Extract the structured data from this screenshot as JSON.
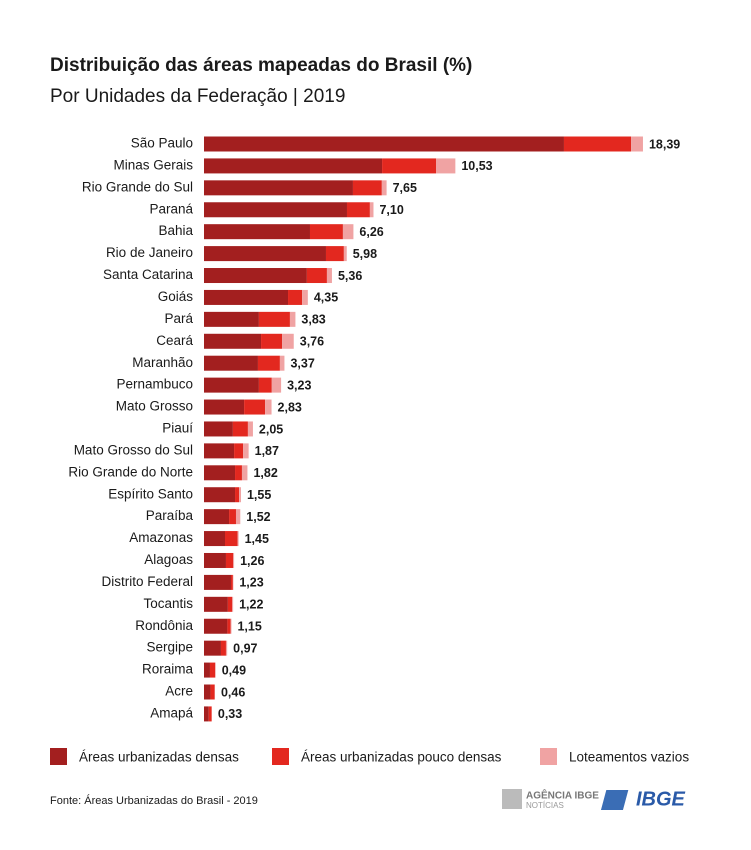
{
  "chart_data": {
    "type": "stacked-bar-horizontal",
    "title": "Distribuição das áreas mapeadas do Brasil (%)",
    "subtitle": "Por Unidades da Federação | 2019",
    "categories": [
      "São Paulo",
      "Minas Gerais",
      "Rio Grande do Sul",
      "Paraná",
      "Bahia",
      "Rio de Janeiro",
      "Santa Catarina",
      "Goiás",
      "Pará",
      "Ceará",
      "Maranhão",
      "Pernambuco",
      "Mato Grosso",
      "Piauí",
      "Mato Grosso do Sul",
      "Rio Grande do Norte",
      "Espírito Santo",
      "Paraíba",
      "Amazonas",
      "Alagoas",
      "Distrito Federal",
      "Tocantis",
      "Rondônia",
      "Sergipe",
      "Roraima",
      "Acre",
      "Amapá"
    ],
    "series": [
      {
        "name": "Áreas urbanizadas densas",
        "color": "#a31f1f",
        "values": [
          15.08,
          7.46,
          6.24,
          5.99,
          4.44,
          5.11,
          4.31,
          3.52,
          2.3,
          2.39,
          2.26,
          2.3,
          1.68,
          1.21,
          1.26,
          1.3,
          1.3,
          1.05,
          0.88,
          0.92,
          1.13,
          1.0,
          0.98,
          0.71,
          0.25,
          0.27,
          0.2
        ]
      },
      {
        "name": "Áreas urbanizadas pouco densas",
        "color": "#e3281f",
        "values": [
          2.81,
          2.26,
          1.21,
          0.96,
          1.38,
          0.75,
          0.84,
          0.59,
          1.3,
          0.88,
          0.92,
          0.54,
          0.88,
          0.63,
          0.38,
          0.29,
          0.17,
          0.29,
          0.53,
          0.3,
          0.08,
          0.18,
          0.13,
          0.21,
          0.22,
          0.17,
          0.12
        ]
      },
      {
        "name": "Loteamentos vazios",
        "color": "#f0a3a3",
        "values": [
          0.5,
          0.81,
          0.2,
          0.15,
          0.44,
          0.12,
          0.21,
          0.24,
          0.23,
          0.49,
          0.19,
          0.39,
          0.27,
          0.21,
          0.23,
          0.23,
          0.08,
          0.18,
          0.04,
          0.04,
          0.02,
          0.04,
          0.04,
          0.05,
          0.02,
          0.02,
          0.01
        ]
      }
    ],
    "values": [
      18.39,
      10.53,
      7.65,
      7.1,
      6.26,
      5.98,
      5.36,
      4.35,
      3.83,
      3.76,
      3.37,
      3.23,
      2.83,
      2.05,
      1.87,
      1.82,
      1.55,
      1.52,
      1.45,
      1.26,
      1.23,
      1.22,
      1.15,
      0.97,
      0.49,
      0.46,
      0.33
    ],
    "value_labels": [
      "18,39",
      "10,53",
      "7,65",
      "7,10",
      "6,26",
      "5,98",
      "5,36",
      "4,35",
      "3,83",
      "3,76",
      "3,37",
      "3,23",
      "2,83",
      "2,05",
      "1,87",
      "1,82",
      "1,55",
      "1,52",
      "1,45",
      "1,26",
      "1,23",
      "1,22",
      "1,15",
      "0,97",
      "0,49",
      "0,46",
      "0,33"
    ],
    "xlim": [
      0,
      20
    ]
  },
  "footer": {
    "source": "Fonte: Áreas Urbanizadas do Brasil - 2019",
    "agency": "AGÊNCIA IBGE",
    "agency_sub": "NOTÍCIAS",
    "logo": "IBGE"
  }
}
